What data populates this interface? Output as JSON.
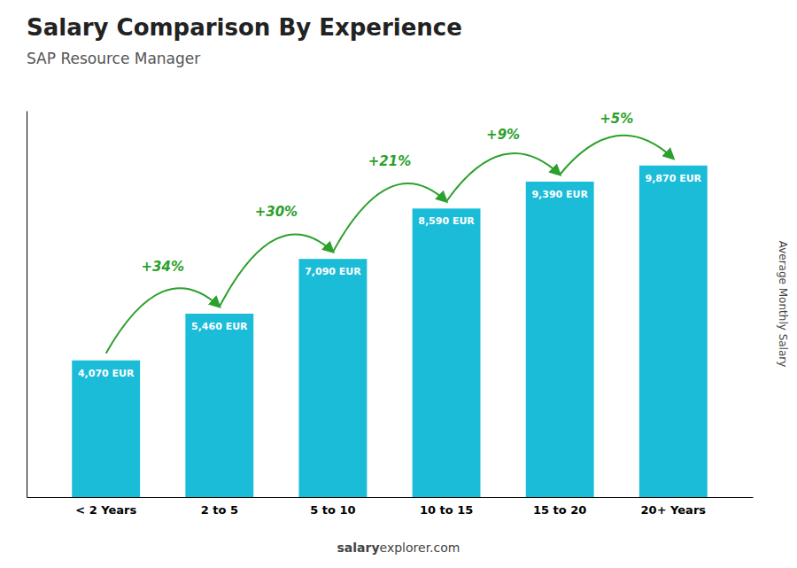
{
  "chart_data": {
    "type": "bar",
    "title": "Salary Comparison By Experience",
    "subtitle": "SAP Resource Manager",
    "categories": [
      "< 2 Years",
      "2 to 5",
      "5 to 10",
      "10 to 15",
      "15 to 20",
      "20+ Years"
    ],
    "values": [
      4070,
      5460,
      7090,
      8590,
      9390,
      9870
    ],
    "value_labels": [
      "4,070 EUR",
      "5,460 EUR",
      "7,090 EUR",
      "8,590 EUR",
      "9,390 EUR",
      "9,870 EUR"
    ],
    "data_labels": true,
    "annotations": [
      "+34%",
      "+30%",
      "+21%",
      "+9%",
      "+5%"
    ],
    "ylabel": "Average Monthly Salary",
    "watermark": [
      "salary",
      "explorer.com"
    ],
    "color": "#1bbcd8",
    "ylim": [
      0,
      11500
    ],
    "tick_labels": "x",
    "grid": false
  }
}
